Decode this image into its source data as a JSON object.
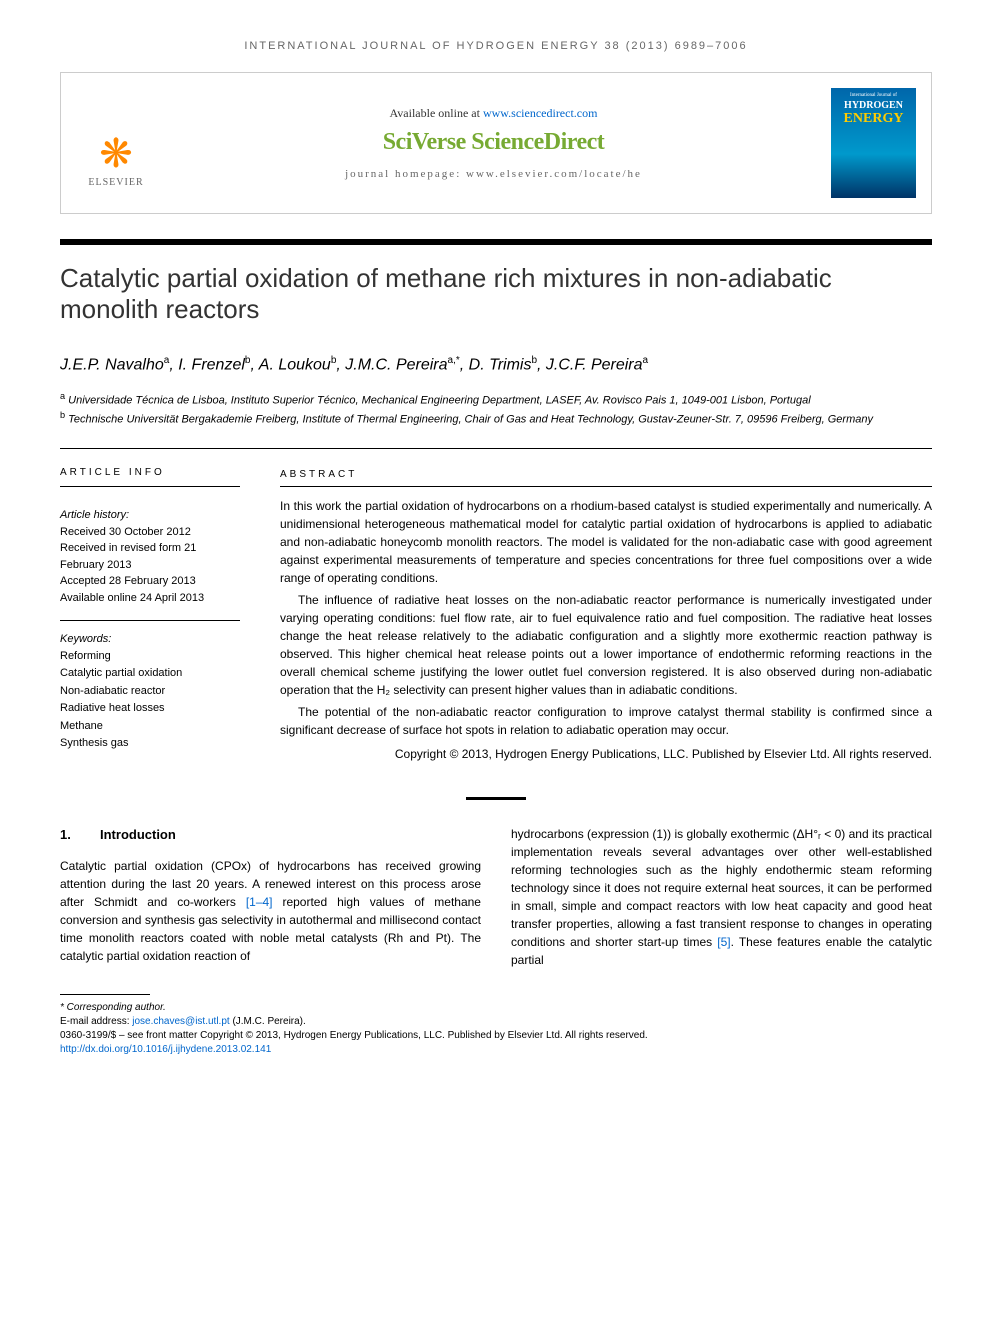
{
  "journal_header": "INTERNATIONAL JOURNAL OF HYDROGEN ENERGY 38 (2013) 6989–7006",
  "topbox": {
    "available_prefix": "Available online at ",
    "available_url": "www.sciencedirect.com",
    "sciverse": "SciVerse ScienceDirect",
    "homepage": "journal homepage: www.elsevier.com/locate/he",
    "elsevier": "ELSEVIER",
    "cover_line1": "International Journal of",
    "cover_line2": "HYDROGEN",
    "cover_line3": "ENERGY"
  },
  "title": "Catalytic partial oxidation of methane rich mixtures in non-adiabatic monolith reactors",
  "authors_html": "J.E.P. Navalho<sup>a</sup>, I. Frenzel<sup>b</sup>, A. Loukou<sup>b</sup>, J.M.C. Pereira<sup>a,*</sup>, D. Trimis<sup>b</sup>, J.C.F. Pereira<sup>a</sup>",
  "affiliations": {
    "a": "Universidade Técnica de Lisboa, Instituto Superior Técnico, Mechanical Engineering Department, LASEF, Av. Rovisco Pais 1, 1049-001 Lisbon, Portugal",
    "b": "Technische Universität Bergakademie Freiberg, Institute of Thermal Engineering, Chair of Gas and Heat Technology, Gustav-Zeuner-Str. 7, 09596 Freiberg, Germany"
  },
  "article_info": {
    "heading": "ARTICLE INFO",
    "history_label": "Article history:",
    "received": "Received 30 October 2012",
    "revised": "Received in revised form 21 February 2013",
    "accepted": "Accepted 28 February 2013",
    "online": "Available online 24 April 2013",
    "keywords_label": "Keywords:",
    "keywords": [
      "Reforming",
      "Catalytic partial oxidation",
      "Non-adiabatic reactor",
      "Radiative heat losses",
      "Methane",
      "Synthesis gas"
    ]
  },
  "abstract": {
    "heading": "ABSTRACT",
    "p1": "In this work the partial oxidation of hydrocarbons on a rhodium-based catalyst is studied experimentally and numerically. A unidimensional heterogeneous mathematical model for catalytic partial oxidation of hydrocarbons is applied to adiabatic and non-adiabatic honeycomb monolith reactors. The model is validated for the non-adiabatic case with good agreement against experimental measurements of temperature and species concentrations for three fuel compositions over a wide range of operating conditions.",
    "p2": "The influence of radiative heat losses on the non-adiabatic reactor performance is numerically investigated under varying operating conditions: fuel flow rate, air to fuel equivalence ratio and fuel composition. The radiative heat losses change the heat release relatively to the adiabatic configuration and a slightly more exothermic reaction pathway is observed. This higher chemical heat release points out a lower importance of endothermic reforming reactions in the overall chemical scheme justifying the lower outlet fuel conversion registered. It is also observed during non-adiabatic operation that the H₂ selectivity can present higher values than in adiabatic conditions.",
    "p3": "The potential of the non-adiabatic reactor configuration to improve catalyst thermal stability is confirmed since a significant decrease of surface hot spots in relation to adiabatic operation may occur.",
    "copyright": "Copyright © 2013, Hydrogen Energy Publications, LLC. Published by Elsevier Ltd. All rights reserved."
  },
  "section1": {
    "heading_num": "1.",
    "heading_text": "Introduction",
    "col1": "Catalytic partial oxidation (CPOx) of hydrocarbons has received growing attention during the last 20 years. A renewed interest on this process arose after Schmidt and co-workers [1–4] reported high values of methane conversion and synthesis gas selectivity in autothermal and millisecond contact time monolith reactors coated with noble metal catalysts (Rh and Pt). The catalytic partial oxidation reaction of",
    "col2": "hydrocarbons (expression (1)) is globally exothermic (ΔH°ᵣ < 0) and its practical implementation reveals several advantages over other well-established reforming technologies such as the highly endothermic steam reforming technology since it does not require external heat sources, it can be performed in small, simple and compact reactors with low heat capacity and good heat transfer properties, allowing a fast transient response to changes in operating conditions and shorter start-up times [5]. These features enable the catalytic partial",
    "cite1": "[1–4]",
    "cite2": "[5]"
  },
  "footnotes": {
    "corr": "* Corresponding author.",
    "email_label": "E-mail address: ",
    "email": "jose.chaves@ist.utl.pt",
    "email_suffix": " (J.M.C. Pereira).",
    "issn": "0360-3199/$ – see front matter Copyright © 2013, Hydrogen Energy Publications, LLC. Published by Elsevier Ltd. All rights reserved.",
    "doi": "http://dx.doi.org/10.1016/j.ijhydene.2013.02.141"
  },
  "colors": {
    "link": "#0066cc",
    "sciverse": "#77aa33",
    "elsevier_orange": "#ff8800",
    "text": "#000000",
    "muted": "#666666"
  }
}
